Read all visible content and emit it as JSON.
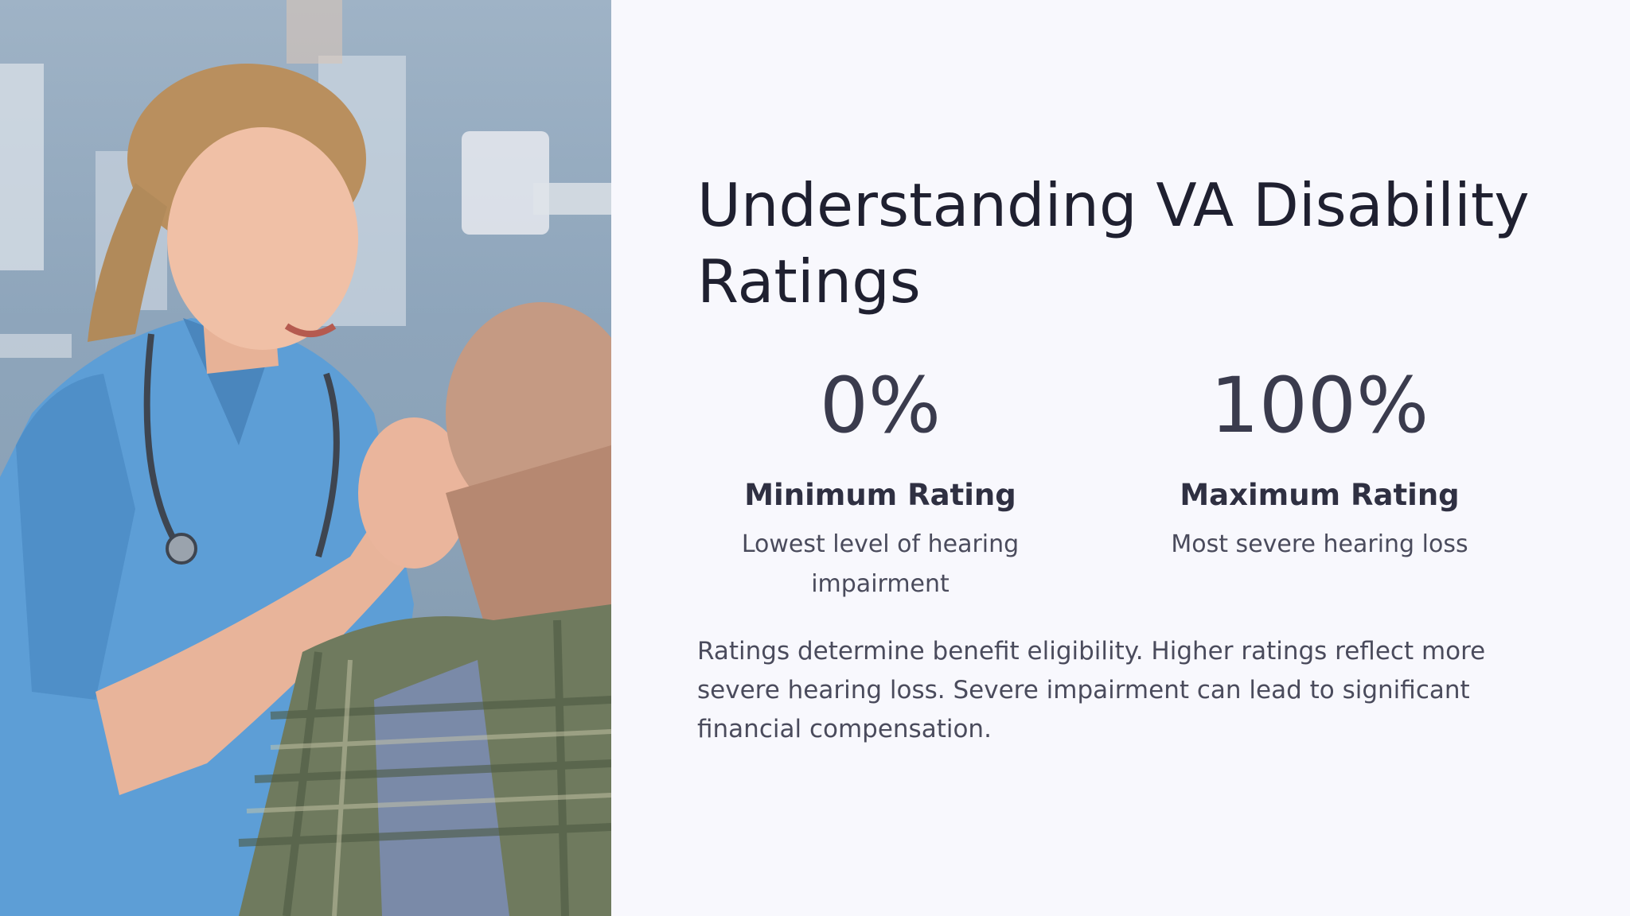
{
  "slide": {
    "title": "Understanding VA Disability Ratings",
    "photo": {
      "icon": "nurse-examining-patient-ear-photo"
    },
    "stats": [
      {
        "value": "0%",
        "label": "Minimum Rating",
        "description": "Lowest level of hearing impairment"
      },
      {
        "value": "100%",
        "label": "Maximum Rating",
        "description": "Most severe hearing loss"
      }
    ],
    "summary": "Ratings determine benefit eligibility. Higher ratings reflect more severe hearing loss. Severe impairment can lead to significant financial compensation."
  },
  "colors": {
    "background": "#f8f8fd",
    "title": "#1f2030",
    "body_text": "#4a4b5c",
    "scrubs": "#5b9bd2"
  }
}
